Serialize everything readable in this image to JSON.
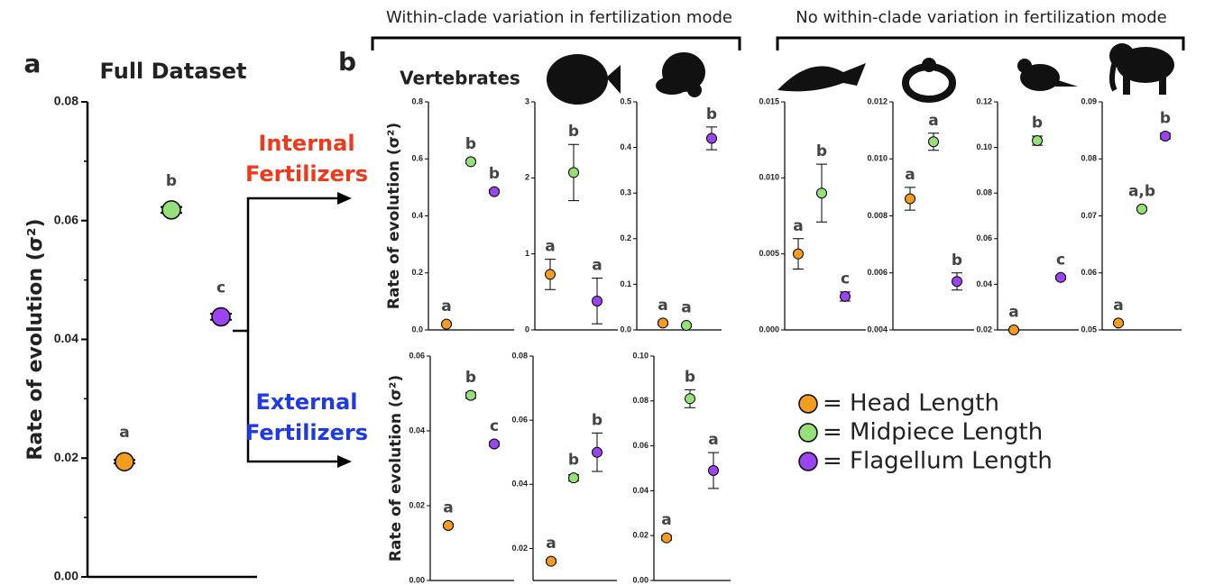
{
  "headers": {
    "within": "Within-clade variation in fertilization mode",
    "none": "No within-clade variation in fertilization mode"
  },
  "panel_labels": {
    "a": "a",
    "b": "b"
  },
  "panel_a_title": "Full Dataset",
  "vertebrates_label": "Vertebrates",
  "groups": {
    "internal": "Internal\nFertilizers",
    "external": "External\nFertilizers",
    "internal_color": "#ee3a1c",
    "external_color": "#1f3ae0"
  },
  "legend": {
    "items": [
      {
        "label": "= Head Length",
        "color": "#f39c1e"
      },
      {
        "label": "= Midpiece Length",
        "color": "#96e07a"
      },
      {
        "label": "= Flagellum Length",
        "color": "#9b45f0"
      }
    ]
  },
  "chart_data": [
    {
      "type": "dot",
      "y_label": "Rate of evolution (σ²)",
      "ylim": [
        0,
        0.08
      ],
      "yticks": [
        {
          "value": 0,
          "label": "0.00"
        },
        {
          "value": 0.02,
          "label": "0.02"
        },
        {
          "value": 0.04,
          "label": "0.04"
        },
        {
          "value": 0.06,
          "label": "0.06"
        },
        {
          "value": 0.08,
          "label": "0.08"
        }
      ],
      "values": [
        0.0194,
        0.0618,
        0.0438
      ],
      "errors": [
        0.0003,
        0.0005,
        0.0005
      ],
      "annotations": [
        "a",
        "b",
        "c"
      ]
    },
    {
      "type": "dot",
      "y_label": "Rate of evolution (σ²)",
      "ylim": [
        0,
        0.8
      ],
      "yticks": [
        {
          "value": 0,
          "label": "0.0"
        },
        {
          "value": 0.2,
          "label": "0.2"
        },
        {
          "value": 0.4,
          "label": "0.4"
        },
        {
          "value": 0.6,
          "label": "0.6"
        },
        {
          "value": 0.8,
          "label": "0.8"
        }
      ],
      "values": [
        0.02,
        0.59,
        0.485
      ],
      "errors": [
        0.004,
        0.006,
        0.006
      ],
      "annotations": [
        "a",
        "b",
        "b"
      ]
    },
    {
      "type": "dot",
      "ylim": [
        0,
        3
      ],
      "yticks": [
        0,
        1,
        2,
        3
      ],
      "values": [
        0.73,
        2.07,
        0.38
      ],
      "errors": [
        0.2,
        0.37,
        0.3
      ],
      "annotations": [
        "a",
        "b",
        "a"
      ]
    },
    {
      "type": "dot",
      "ylim": [
        0,
        0.5
      ],
      "yticks": [
        {
          "value": 0,
          "label": "0.0"
        },
        {
          "value": 0.1,
          "label": "0.1"
        },
        {
          "value": 0.2,
          "label": "0.2"
        },
        {
          "value": 0.3,
          "label": "0.3"
        },
        {
          "value": 0.4,
          "label": "0.4"
        },
        {
          "value": 0.5,
          "label": "0.5"
        }
      ],
      "values": [
        0.015,
        0.01,
        0.42
      ],
      "errors": [
        0.004,
        0.003,
        0.025
      ],
      "annotations": [
        "a",
        "a",
        "b"
      ]
    },
    {
      "type": "dot",
      "ylim": [
        0,
        0.015
      ],
      "yticks": [
        {
          "value": 0,
          "label": "0.000"
        },
        {
          "value": 0.005,
          "label": "0.005"
        },
        {
          "value": 0.01,
          "label": "0.010"
        },
        {
          "value": 0.015,
          "label": "0.015"
        }
      ],
      "values": [
        0.005,
        0.009,
        0.0022
      ],
      "errors": [
        0.001,
        0.0019,
        0.0003
      ],
      "annotations": [
        "a",
        "b",
        "c"
      ]
    },
    {
      "type": "dot",
      "ylim": [
        0.004,
        0.012
      ],
      "yticks": [
        {
          "value": 0.004,
          "label": "0.004"
        },
        {
          "value": 0.006,
          "label": "0.006"
        },
        {
          "value": 0.008,
          "label": "0.008"
        },
        {
          "value": 0.01,
          "label": "0.010"
        },
        {
          "value": 0.012,
          "label": "0.012"
        }
      ],
      "values": [
        0.0086,
        0.0106,
        0.0057
      ],
      "errors": [
        0.0004,
        0.0003,
        0.0003
      ],
      "annotations": [
        "a",
        "a",
        "b"
      ]
    },
    {
      "type": "dot",
      "ylim": [
        0.02,
        0.12
      ],
      "yticks": [
        {
          "value": 0.02,
          "label": "0.02"
        },
        {
          "value": 0.04,
          "label": "0.04"
        },
        {
          "value": 0.06,
          "label": "0.06"
        },
        {
          "value": 0.08,
          "label": "0.08"
        },
        {
          "value": 0.1,
          "label": "0.10"
        },
        {
          "value": 0.12,
          "label": "0.12"
        }
      ],
      "values": [
        0.02,
        0.103,
        0.043
      ],
      "errors": [
        0.0005,
        0.002,
        0.0008
      ],
      "annotations": [
        "a",
        "b",
        "c"
      ]
    },
    {
      "type": "dot",
      "ylim": [
        0.05,
        0.09
      ],
      "yticks": [
        {
          "value": 0.05,
          "label": "0.05"
        },
        {
          "value": 0.06,
          "label": "0.06"
        },
        {
          "value": 0.07,
          "label": "0.07"
        },
        {
          "value": 0.08,
          "label": "0.08"
        },
        {
          "value": 0.09,
          "label": "0.09"
        }
      ],
      "values": [
        0.0512,
        0.0712,
        0.084
      ],
      "errors": [
        0.0003,
        0.0003,
        0.0005
      ],
      "annotations": [
        "a",
        "a,b",
        "b"
      ]
    },
    {
      "type": "dot",
      "y_label": "Rate of evolution (σ²)",
      "ylim": [
        0,
        0.06
      ],
      "yticks": [
        {
          "value": 0,
          "label": "0.00"
        },
        {
          "value": 0.02,
          "label": "0.02"
        },
        {
          "value": 0.04,
          "label": "0.04"
        },
        {
          "value": 0.06,
          "label": "0.06"
        }
      ],
      "values": [
        0.0147,
        0.0495,
        0.0365
      ],
      "errors": [
        0.0004,
        0.0008,
        0.0006
      ],
      "annotations": [
        "a",
        "b",
        "c"
      ]
    },
    {
      "type": "dot",
      "ylim": [
        0.01,
        0.08
      ],
      "yticks": [
        {
          "value": 0.02,
          "label": "0.02"
        },
        {
          "value": 0.04,
          "label": "0.04"
        },
        {
          "value": 0.06,
          "label": "0.06"
        },
        {
          "value": 0.08,
          "label": "0.08"
        }
      ],
      "values": [
        0.016,
        0.042,
        0.05
      ],
      "errors": [
        0.0005,
        0.001,
        0.006
      ],
      "annotations": [
        "a",
        "b",
        "b"
      ]
    },
    {
      "type": "dot",
      "ylim": [
        0,
        0.1
      ],
      "yticks": [
        {
          "value": 0,
          "label": "0.00"
        },
        {
          "value": 0.02,
          "label": "0.02"
        },
        {
          "value": 0.04,
          "label": "0.04"
        },
        {
          "value": 0.06,
          "label": "0.06"
        },
        {
          "value": 0.08,
          "label": "0.08"
        },
        {
          "value": 0.1,
          "label": "0.10"
        }
      ],
      "values": [
        0.019,
        0.081,
        0.049
      ],
      "errors": [
        0.001,
        0.004,
        0.008
      ],
      "annotations": [
        "a",
        "b",
        "a"
      ]
    }
  ]
}
